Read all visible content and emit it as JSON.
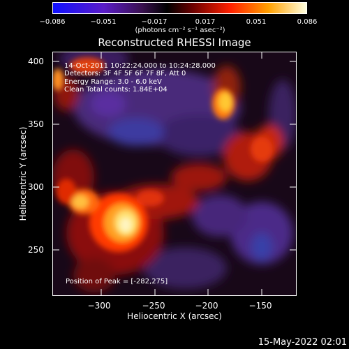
{
  "colorbar": {
    "ticks": [
      "−0.086",
      "−0.051",
      "−0.017",
      "0.017",
      "0.051",
      "0.086"
    ],
    "unit": "(photons cm⁻² s⁻¹ asec⁻²)"
  },
  "title": "Reconstructed RHESSI Image",
  "info": {
    "time": "14-Oct-2011 10:22:24.000 to 10:24:28.000",
    "detectors": "Detectors: 3F 4F 5F 6F 7F 8F, Att 0",
    "energy": "Energy Range: 3.0 - 6.0 keV",
    "clean": "Clean    Total counts: 1.84E+04",
    "peak": "Position of Peak = [-282,275]"
  },
  "axes": {
    "xlabel": "Heliocentric X (arcsec)",
    "ylabel": "Heliocentric Y (arcsec)",
    "xticks": [
      "−300",
      "−250",
      "−200",
      "−150"
    ],
    "yticks": [
      "400",
      "350",
      "300",
      "250"
    ]
  },
  "timestamp": "15-May-2022 02:01"
}
